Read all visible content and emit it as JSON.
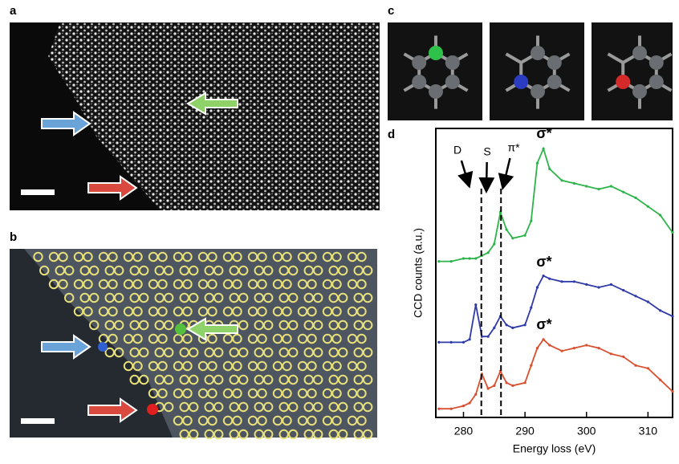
{
  "panel_labels": [
    "a",
    "b",
    "c",
    "d"
  ],
  "chart_data": {
    "type": "line",
    "xlabel": "Energy loss (eV)",
    "ylabel": "CCD counts (a.u.)",
    "xlim": [
      275.5,
      314
    ],
    "ylim": [
      0,
      100
    ],
    "xticks": [
      280,
      290,
      300,
      310
    ],
    "x": [
      276,
      278,
      280,
      281,
      282,
      283,
      284,
      285,
      286,
      287,
      288,
      290,
      291,
      292,
      293,
      294,
      296,
      298,
      300,
      302,
      304,
      306,
      308,
      310,
      312,
      314
    ],
    "series": [
      {
        "color": "#2db34a",
        "values": [
          54,
          54,
          55,
          55,
          55,
          56,
          57,
          60,
          71,
          65,
          62,
          63,
          68,
          88,
          93,
          86,
          82,
          81,
          80,
          79,
          80,
          78,
          76,
          73,
          70,
          64
        ]
      },
      {
        "color": "#2f3aa8",
        "values": [
          26,
          26,
          26,
          27,
          39,
          28,
          28,
          31,
          35,
          32,
          31,
          32,
          38,
          45,
          49,
          48,
          47,
          47,
          46,
          45,
          46,
          44,
          42,
          40,
          37,
          35
        ]
      },
      {
        "color": "#d8502f",
        "values": [
          3,
          3,
          4,
          5,
          8,
          15,
          10,
          11,
          16,
          12,
          11,
          12,
          18,
          24,
          27,
          25,
          23,
          24,
          25,
          24,
          22,
          21,
          18,
          17,
          13,
          9
        ]
      }
    ],
    "vlines": [
      282.9,
      286.1
    ],
    "annotations": [
      "D",
      "S",
      "π*",
      "σ*",
      "σ*",
      "σ*"
    ]
  }
}
